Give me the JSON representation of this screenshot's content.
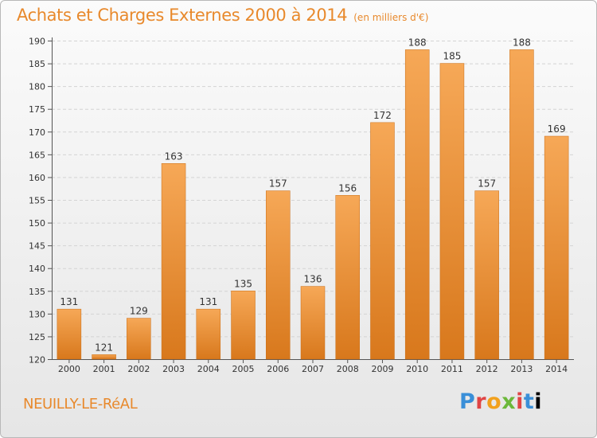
{
  "header": {
    "title": "Achats et Charges Externes 2000 à 2014",
    "subtitle": "(en milliers d'€)"
  },
  "footer": {
    "place": "NEUILLY-LE-RéAL",
    "logo": "Proxiti"
  },
  "colors": {
    "accent": "#e8892c",
    "bar_top": "#f6a857",
    "bar_bottom": "#d8781c"
  },
  "chart_data": {
    "type": "bar",
    "categories": [
      "2000",
      "2001",
      "2002",
      "2003",
      "2004",
      "2005",
      "2006",
      "2007",
      "2008",
      "2009",
      "2010",
      "2011",
      "2012",
      "2013",
      "2014"
    ],
    "values": [
      131,
      121,
      129,
      163,
      131,
      135,
      157,
      136,
      156,
      172,
      188,
      185,
      157,
      188,
      169
    ],
    "title": "Achats et Charges Externes 2000 à 2014",
    "subtitle": "(en milliers d'€)",
    "ylim": [
      120,
      190
    ],
    "yticks": [
      120,
      125,
      130,
      135,
      140,
      145,
      150,
      155,
      160,
      165,
      170,
      175,
      180,
      185,
      190
    ],
    "grid": true,
    "legend": "none"
  }
}
